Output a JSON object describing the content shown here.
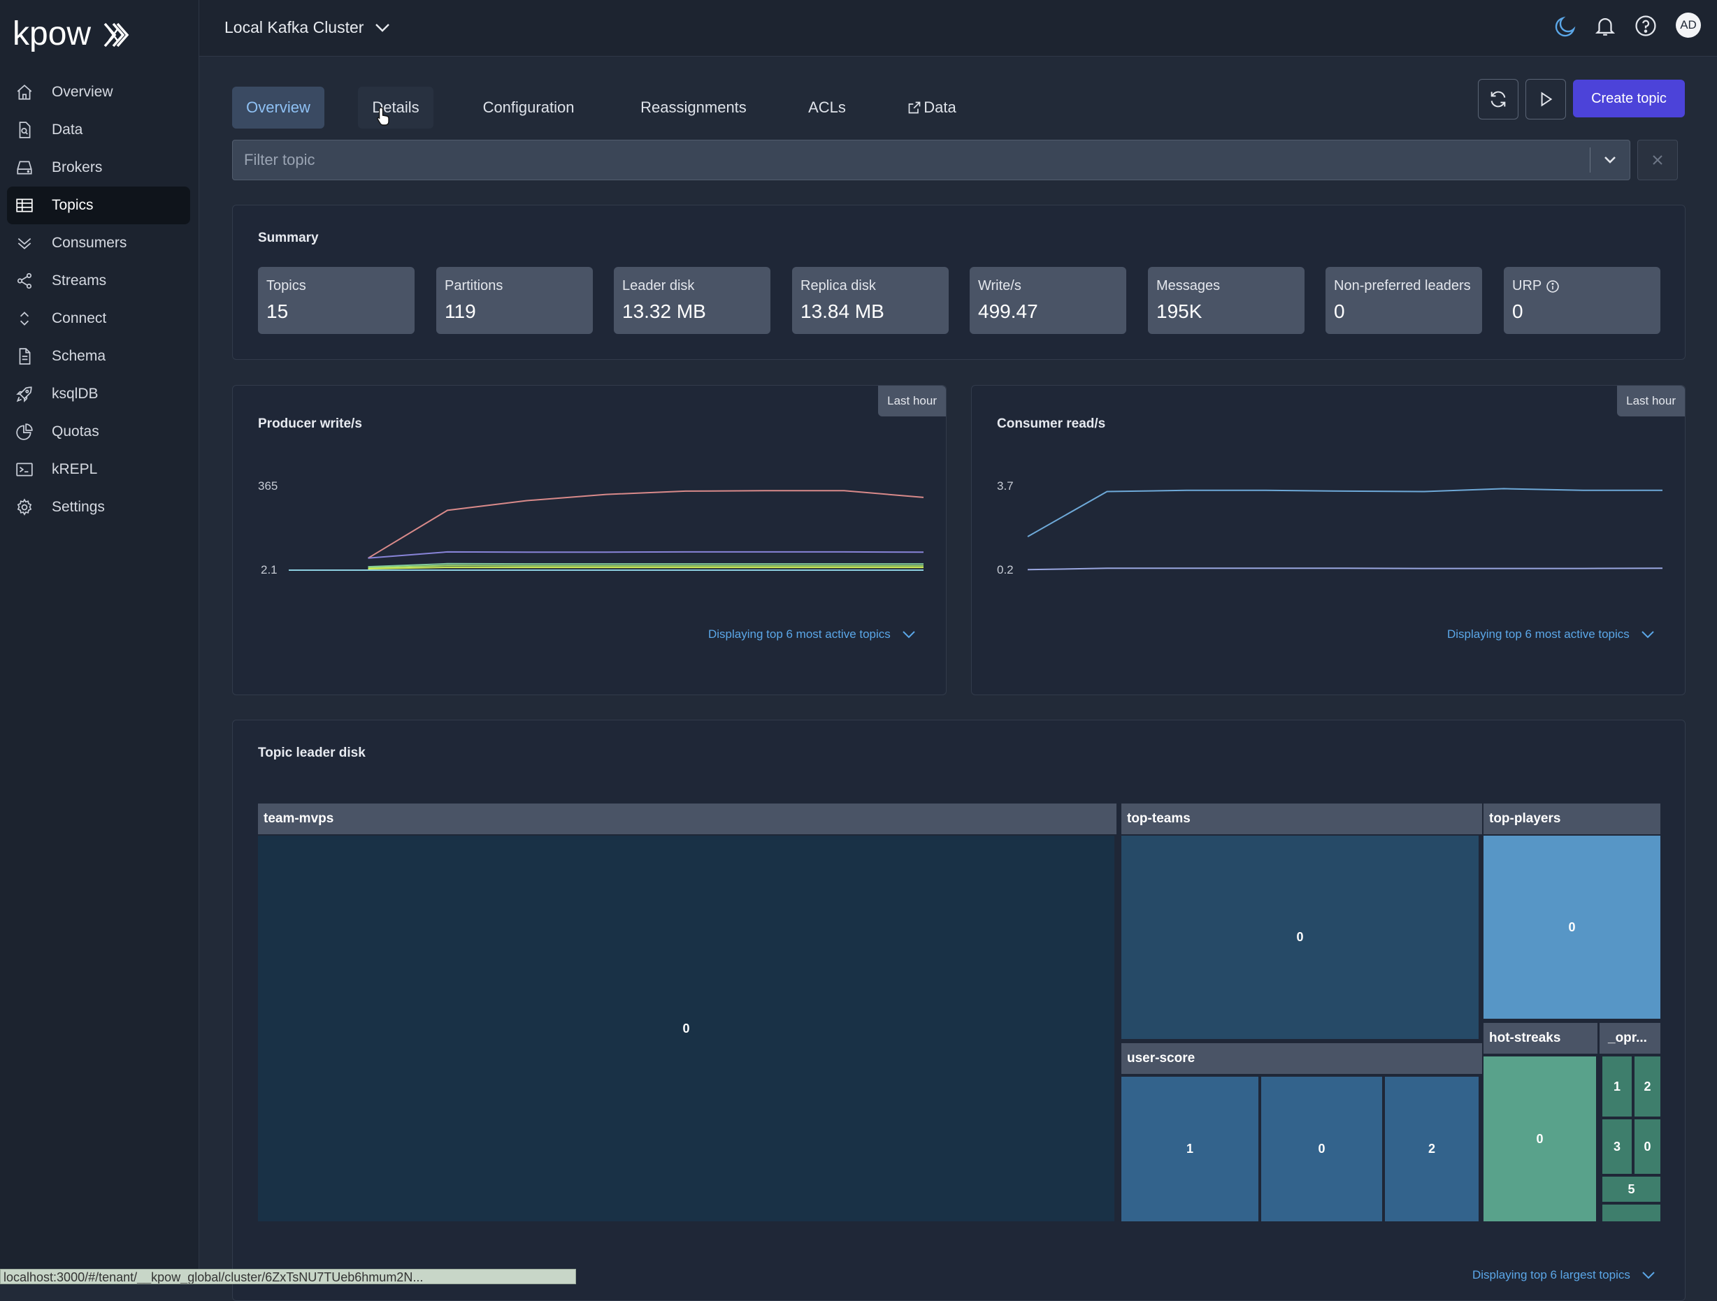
{
  "app": {
    "logo_text": "kpow",
    "cluster_name": "Local Kafka Cluster",
    "avatar_initials": "AD"
  },
  "sidebar": {
    "items": [
      {
        "label": "Overview",
        "icon": "home-icon"
      },
      {
        "label": "Data",
        "icon": "document-search-icon"
      },
      {
        "label": "Brokers",
        "icon": "server-icon"
      },
      {
        "label": "Topics",
        "icon": "table-icon",
        "active": true
      },
      {
        "label": "Consumers",
        "icon": "chevrons-down-icon"
      },
      {
        "label": "Streams",
        "icon": "share-icon"
      },
      {
        "label": "Connect",
        "icon": "chevron-up-down-icon"
      },
      {
        "label": "Schema",
        "icon": "document-icon"
      },
      {
        "label": "ksqlDB",
        "icon": "rocket-icon"
      },
      {
        "label": "Quotas",
        "icon": "pie-chart-icon"
      },
      {
        "label": "kREPL",
        "icon": "terminal-icon"
      },
      {
        "label": "Settings",
        "icon": "gear-icon"
      }
    ]
  },
  "tabs": [
    {
      "label": "Overview",
      "active": true
    },
    {
      "label": "Details",
      "hover": true
    },
    {
      "label": "Configuration"
    },
    {
      "label": "Reassignments"
    },
    {
      "label": "ACLs"
    },
    {
      "label": "Data",
      "icon": "external-link-icon"
    }
  ],
  "toolbar": {
    "create_label": "Create topic"
  },
  "filter": {
    "placeholder": "Filter topic"
  },
  "summary": {
    "title": "Summary",
    "stats": [
      {
        "label": "Topics",
        "value": "15"
      },
      {
        "label": "Partitions",
        "value": "119"
      },
      {
        "label": "Leader disk",
        "value": "13.32 MB"
      },
      {
        "label": "Replica disk",
        "value": "13.84 MB"
      },
      {
        "label": "Write/s",
        "value": "499.47"
      },
      {
        "label": "Messages",
        "value": "195K"
      },
      {
        "label": "Non-preferred leaders",
        "value": "0"
      },
      {
        "label": "URP",
        "value": "0",
        "info_icon": true
      }
    ]
  },
  "producer": {
    "title": "Producer write/s",
    "range_label": "Last hour",
    "footer_link": "Displaying top 6 most active topics"
  },
  "consumer": {
    "title": "Consumer read/s",
    "range_label": "Last hour",
    "footer_link": "Displaying top 6 most active topics"
  },
  "treemap": {
    "title": "Topic leader disk",
    "footer_link": "Displaying top 6 largest topics"
  },
  "chart_data": [
    {
      "type": "line",
      "title": "Producer write/s",
      "yticks": [
        "365",
        "2.1"
      ],
      "ylim": [
        2.1,
        365
      ],
      "x": [
        0,
        1,
        2,
        3,
        4,
        5,
        6,
        7,
        8
      ],
      "series": [
        {
          "color": "#d98a8a",
          "values": [
            null,
            54,
            261,
            303,
            330,
            344,
            346,
            346,
            317
          ]
        },
        {
          "color": "#8884d8",
          "values": [
            null,
            54,
            81,
            80,
            80,
            81,
            81,
            81,
            80
          ]
        },
        {
          "color": "#82ca9d",
          "values": [
            null,
            17,
            30,
            29,
            29,
            29,
            29,
            29,
            29
          ]
        },
        {
          "color": "#a4de6c",
          "values": [
            null,
            12,
            22,
            21,
            21,
            21,
            21,
            21,
            21
          ]
        },
        {
          "color": "#d0ed57",
          "values": [
            null,
            8,
            14,
            14,
            14,
            14,
            14,
            14,
            14
          ]
        },
        {
          "color": "#8dd1e1",
          "values": [
            2.1,
            2.1,
            2.1,
            2.1,
            2.1,
            2.1,
            2.1,
            2.1,
            2.1
          ]
        }
      ]
    },
    {
      "type": "line",
      "title": "Consumer read/s",
      "yticks": [
        "3.7",
        "0.2"
      ],
      "ylim": [
        0.2,
        3.7
      ],
      "x": [
        0,
        1,
        2,
        3,
        4,
        5,
        6,
        7,
        8
      ],
      "series": [
        {
          "color": "#6ea9d8",
          "values": [
            1.6,
            3.48,
            3.53,
            3.53,
            3.5,
            3.48,
            3.6,
            3.53,
            3.53
          ]
        },
        {
          "color": "#9aa7e0",
          "values": [
            0.22,
            0.28,
            0.28,
            0.28,
            0.28,
            0.27,
            0.27,
            0.27,
            0.28
          ]
        }
      ]
    }
  ],
  "treemap_data": {
    "topics": [
      {
        "name": "team-mvps",
        "partitions": [
          {
            "label": "0"
          }
        ]
      },
      {
        "name": "top-teams",
        "partitions": [
          {
            "label": "0"
          }
        ]
      },
      {
        "name": "top-players",
        "partitions": [
          {
            "label": "0"
          }
        ]
      },
      {
        "name": "user-score",
        "partitions": [
          {
            "label": "1"
          },
          {
            "label": "0"
          },
          {
            "label": "2"
          }
        ]
      },
      {
        "name": "hot-streaks",
        "partitions": [
          {
            "label": "0"
          }
        ]
      },
      {
        "name": "_opr...",
        "partitions": [
          {
            "label": "1"
          },
          {
            "label": "2"
          },
          {
            "label": "3"
          },
          {
            "label": "0"
          },
          {
            "label": "5"
          },
          {
            "label": ""
          }
        ]
      }
    ]
  },
  "statusbar": {
    "url": "localhost:3000/#/tenant/__kpow_global/cluster/6ZxTsNU7TUeb6hmum2N..."
  }
}
